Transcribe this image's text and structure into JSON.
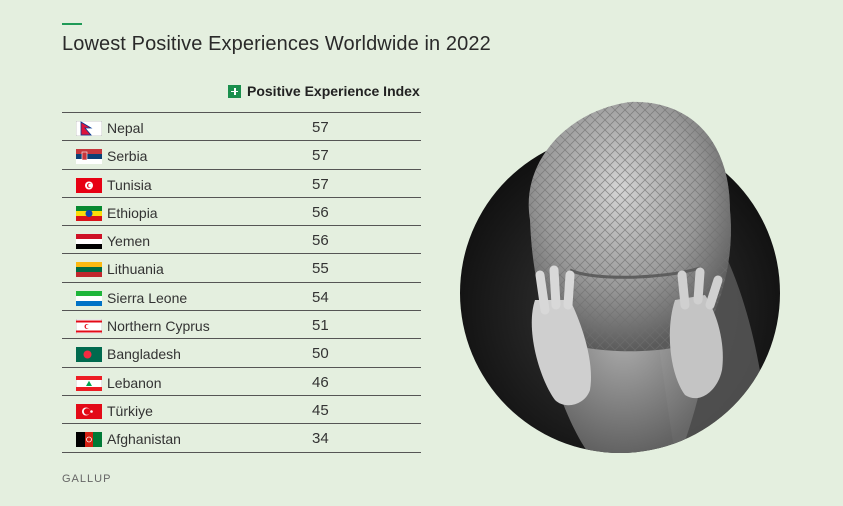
{
  "title": "Lowest Positive Experiences Worldwide in 2022",
  "legend_label": "Positive Experience Index",
  "source": "GALLUP",
  "colors": {
    "accent": "#1f9a57",
    "background": "#e4efdf"
  },
  "chart_data": {
    "type": "table",
    "title": "Lowest Positive Experiences Worldwide in 2022",
    "columns": [
      "",
      "Positive Experience Index"
    ],
    "rows": [
      {
        "country": "Nepal",
        "value": 57,
        "flag": "nepal-flag"
      },
      {
        "country": "Serbia",
        "value": 57,
        "flag": "serbia-flag"
      },
      {
        "country": "Tunisia",
        "value": 57,
        "flag": "tunisia-flag"
      },
      {
        "country": "Ethiopia",
        "value": 56,
        "flag": "ethiopia-flag"
      },
      {
        "country": "Yemen",
        "value": 56,
        "flag": "yemen-flag"
      },
      {
        "country": "Lithuania",
        "value": 55,
        "flag": "lithuania-flag"
      },
      {
        "country": "Sierra Leone",
        "value": 54,
        "flag": "sierra-leone-flag"
      },
      {
        "country": "Northern Cyprus",
        "value": 51,
        "flag": "northern-cyprus-flag"
      },
      {
        "country": "Bangladesh",
        "value": 50,
        "flag": "bangladesh-flag"
      },
      {
        "country": "Lebanon",
        "value": 46,
        "flag": "lebanon-flag"
      },
      {
        "country": "Türkiye",
        "value": 45,
        "flag": "turkiye-flag"
      },
      {
        "country": "Afghanistan",
        "value": 34,
        "flag": "afghanistan-flag"
      }
    ]
  }
}
